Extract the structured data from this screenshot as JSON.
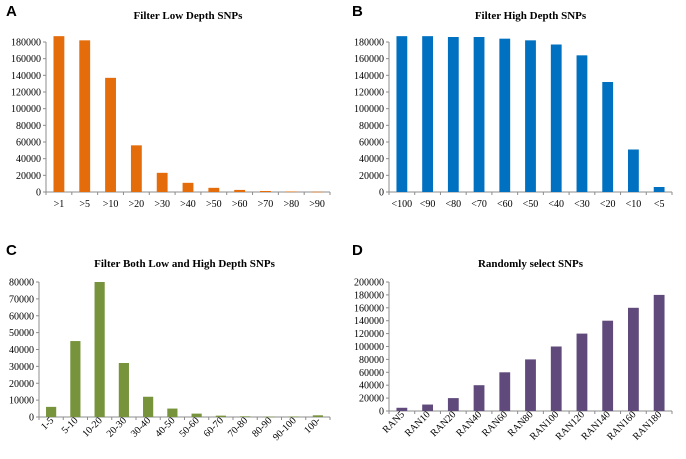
{
  "figure_labels": [
    "A",
    "B",
    "C",
    "D"
  ],
  "chart_data": [
    {
      "type": "bar",
      "title": "Filter Low Depth SNPs",
      "categories": [
        ">1",
        ">5",
        ">10",
        ">20",
        ">30",
        ">40",
        ">50",
        ">60",
        ">70",
        ">80",
        ">90"
      ],
      "values": [
        187000,
        182000,
        137000,
        56000,
        23000,
        11000,
        5000,
        2500,
        1200,
        600,
        300
      ],
      "ylim": [
        0,
        180000
      ],
      "yticks": [
        0,
        20000,
        40000,
        60000,
        80000,
        100000,
        120000,
        140000,
        160000,
        180000
      ],
      "color": "#E46C0A",
      "xlabel": "",
      "ylabel": ""
    },
    {
      "type": "bar",
      "title": "Filter High Depth SNPs",
      "categories": [
        "<100",
        "<90",
        "<80",
        "<70",
        "<60",
        "<50",
        "<40",
        "<30",
        "<20",
        "<10",
        "<5"
      ],
      "values": [
        187000,
        187000,
        186000,
        186000,
        184000,
        182000,
        177000,
        164000,
        132000,
        51000,
        6000
      ],
      "ylim": [
        0,
        180000
      ],
      "yticks": [
        0,
        20000,
        40000,
        60000,
        80000,
        100000,
        120000,
        140000,
        160000,
        180000
      ],
      "color": "#0070C0",
      "xlabel": "",
      "ylabel": ""
    },
    {
      "type": "bar",
      "title": "Filter Both Low and High Depth SNPs",
      "categories": [
        "1-5",
        "5-10",
        "10-20",
        "20-30",
        "30-40",
        "40-50",
        "50-60",
        "60-70",
        "70-80",
        "80-90",
        "90-100",
        "100-"
      ],
      "values": [
        6000,
        45000,
        80000,
        32000,
        12000,
        5000,
        2000,
        800,
        400,
        200,
        300,
        1000
      ],
      "ylim": [
        0,
        80000
      ],
      "yticks": [
        0,
        10000,
        20000,
        30000,
        40000,
        50000,
        60000,
        70000,
        80000
      ],
      "color": "#77933C",
      "xlabel": "",
      "ylabel": ""
    },
    {
      "type": "bar",
      "title": "Randomly select SNPs",
      "categories": [
        "RAN5",
        "RAN10",
        "RAN20",
        "RAN40",
        "RAN60",
        "RAN80",
        "RAN100",
        "RAN120",
        "RAN140",
        "RAN160",
        "RAN180"
      ],
      "values": [
        5000,
        10000,
        20000,
        40000,
        60000,
        80000,
        100000,
        120000,
        140000,
        160000,
        180000
      ],
      "ylim": [
        0,
        200000
      ],
      "yticks": [
        0,
        20000,
        40000,
        60000,
        80000,
        100000,
        120000,
        140000,
        160000,
        180000,
        200000
      ],
      "color": "#604A7B",
      "xlabel": "",
      "ylabel": ""
    }
  ]
}
